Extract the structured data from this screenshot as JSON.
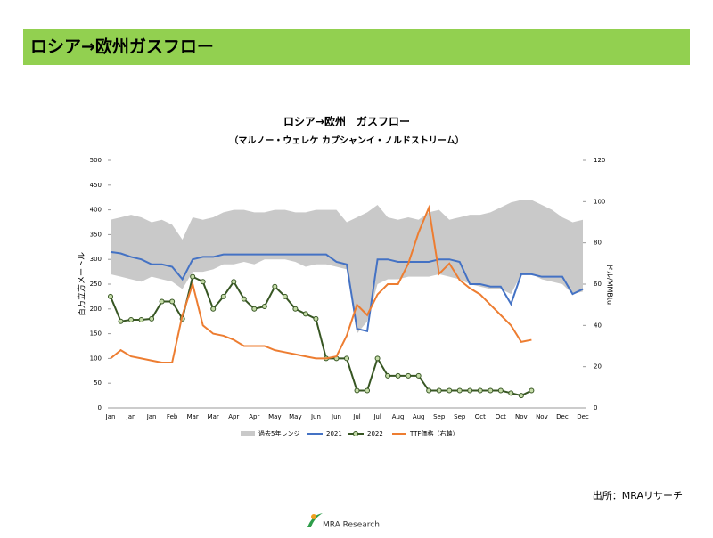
{
  "header": {
    "title": "ロシア→欧州ガスフロー"
  },
  "chart_data": {
    "type": "line",
    "title": "ロシア→欧州　ガスフロー",
    "subtitle": "（マルノー・ウェレケ カプシャンイ・ノルドストリーム）",
    "y_label": "百万立方メートル",
    "y2_label": "ドル/MMBtu",
    "categories": [
      "Jan",
      null,
      "Jan",
      null,
      "Jan",
      null,
      "Feb",
      null,
      "Mar",
      null,
      "Mar",
      null,
      "Apr",
      null,
      "Apr",
      null,
      "May",
      null,
      "May",
      null,
      "Jun",
      null,
      "Jun",
      null,
      "Jul",
      null,
      "Jul",
      null,
      "Aug",
      null,
      "Aug",
      null,
      "Sep",
      null,
      "Sep",
      null,
      "Oct",
      null,
      "Oct",
      null,
      "Nov",
      null,
      "Nov",
      null,
      "Dec",
      null,
      "Dec"
    ],
    "ylim": [
      0,
      500
    ],
    "yticks": [
      0,
      50,
      100,
      150,
      200,
      250,
      300,
      350,
      400,
      450,
      500
    ],
    "y2lim": [
      0,
      120
    ],
    "y2ticks": [
      0,
      20,
      40,
      60,
      80,
      100,
      120
    ],
    "series": [
      {
        "name": "過去5年レンジ",
        "type": "range",
        "color": "#c9c9c9",
        "high": [
          380,
          385,
          390,
          385,
          375,
          380,
          370,
          340,
          385,
          380,
          385,
          395,
          400,
          400,
          395,
          395,
          400,
          400,
          395,
          395,
          400,
          400,
          400,
          375,
          385,
          395,
          410,
          385,
          380,
          385,
          380,
          395,
          400,
          380,
          385,
          390,
          390,
          395,
          405,
          415,
          420,
          420,
          410,
          400,
          385,
          375,
          380
        ],
        "low": [
          270,
          265,
          260,
          255,
          265,
          260,
          255,
          240,
          275,
          275,
          280,
          290,
          290,
          295,
          290,
          300,
          300,
          300,
          295,
          285,
          290,
          290,
          285,
          280,
          150,
          175,
          250,
          260,
          260,
          265,
          265,
          265,
          270,
          265,
          260,
          250,
          245,
          240,
          240,
          230,
          270,
          270,
          260,
          255,
          250,
          230,
          235
        ]
      },
      {
        "name": "2021",
        "color": "#4472c4",
        "values": [
          315,
          312,
          305,
          300,
          290,
          290,
          285,
          260,
          300,
          305,
          305,
          310,
          310,
          310,
          310,
          310,
          310,
          310,
          310,
          310,
          310,
          310,
          295,
          290,
          160,
          155,
          300,
          300,
          295,
          295,
          295,
          295,
          300,
          300,
          295,
          250,
          250,
          245,
          245,
          210,
          270,
          270,
          265,
          265,
          265,
          230,
          240
        ]
      },
      {
        "name": "2022",
        "color": "#375623",
        "marker": "#c5dca8",
        "values": [
          225,
          175,
          178,
          178,
          180,
          215,
          215,
          180,
          265,
          255,
          200,
          225,
          255,
          220,
          200,
          205,
          245,
          225,
          200,
          190,
          180,
          100,
          100,
          100,
          35,
          35,
          100,
          65,
          65,
          65,
          65,
          35,
          35,
          35,
          35,
          35,
          35,
          35,
          35,
          30,
          25,
          35,
          null,
          null,
          null,
          null,
          null
        ]
      },
      {
        "name": "TTF価格（右軸）",
        "color": "#ed7d31",
        "axis": "y2",
        "values": [
          24,
          28,
          25,
          24,
          23,
          22,
          22,
          45,
          60,
          40,
          36,
          35,
          33,
          30,
          30,
          30,
          28,
          27,
          26,
          25,
          24,
          24,
          25,
          35,
          50,
          45,
          55,
          60,
          60,
          70,
          85,
          97,
          65,
          70,
          62,
          58,
          55,
          50,
          45,
          40,
          32,
          33,
          null,
          null,
          null,
          null,
          null
        ]
      }
    ]
  },
  "source": "出所：MRAリサーチ",
  "logo": "MRA Research"
}
